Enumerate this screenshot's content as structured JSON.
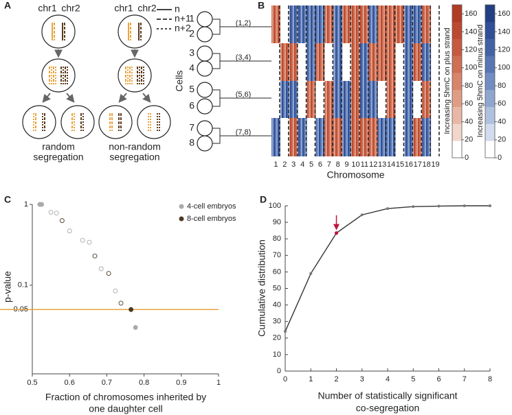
{
  "diagram": {
    "panel": "A",
    "chromosome_labels": [
      "chr1",
      "chr2"
    ],
    "legend": [
      "n",
      "n+1",
      "n+2"
    ],
    "captions": [
      [
        "random",
        "segregation"
      ],
      [
        "non-random",
        "segregation"
      ]
    ]
  },
  "chart_data": [
    {
      "type": "heatmap",
      "panel": "B",
      "xlabel": "Chromosome",
      "ylabel": "Cells",
      "categories": [
        "1",
        "2",
        "3",
        "4",
        "5",
        "6",
        "7",
        "8",
        "9",
        "10",
        "11",
        "12",
        "13",
        "14",
        "15",
        "16",
        "17",
        "18",
        "19"
      ],
      "cells": [
        "1",
        "2",
        "3",
        "4",
        "5",
        "6",
        "7",
        "8"
      ],
      "pairs": [
        "(1,2)",
        "(3,4)",
        "(5,6)",
        "(7,8)"
      ],
      "strand_by_pair": [
        [
          "plus",
          null,
          "minus",
          "minus",
          "minus",
          "minus",
          "plus",
          "minus",
          "plus",
          "plus",
          "plus",
          "minus",
          "plus",
          "plus",
          "plus",
          "minus",
          "minus",
          "plus",
          null
        ],
        [
          null,
          "plus",
          "plus",
          null,
          "minus",
          "plus",
          null,
          "minus",
          null,
          "plus",
          "minus",
          "plus",
          "plus",
          "plus",
          null,
          "minus",
          "plus",
          "minus",
          null
        ],
        [
          null,
          "minus",
          "minus",
          null,
          "plus",
          null,
          "plus",
          "minus",
          "minus",
          "plus",
          "minus",
          "minus",
          null,
          "plus",
          null,
          "minus",
          null,
          "plus",
          null
        ],
        [
          "minus",
          null,
          "plus",
          "minus",
          null,
          "minus",
          "plus",
          "plus",
          "minus",
          "plus",
          "plus",
          "plus",
          "minus",
          "minus",
          null,
          "minus",
          "plus",
          "minus",
          null
        ]
      ],
      "colorbars": [
        {
          "strand": "plus",
          "label": "Increasing 5hmC on plus strand",
          "ylim": [
            0,
            170
          ],
          "yticks": [
            0,
            20,
            40,
            60,
            80,
            100,
            120,
            140,
            160
          ],
          "colors": [
            "#ffffff",
            "#f2d6cc",
            "#e9b7a5",
            "#e09d86",
            "#d7856b",
            "#cf6f54",
            "#c65a40",
            "#bc4a31",
            "#b03c26"
          ]
        },
        {
          "strand": "minus",
          "label": "Increasing 5hmC on minus strand",
          "ylim": [
            0,
            170
          ],
          "yticks": [
            0,
            20,
            40,
            60,
            80,
            100,
            120,
            140,
            160
          ],
          "colors": [
            "#ffffff",
            "#d3dcee",
            "#b0c1e0",
            "#8fa6d1",
            "#718dc2",
            "#5876b4",
            "#4262a6",
            "#2f5096",
            "#233f84"
          ]
        }
      ]
    },
    {
      "type": "scatter",
      "panel": "C",
      "ylabel": "p-value",
      "xlabel": [
        "Fraction of chromosomes inherited by",
        "one daughter cell"
      ],
      "xlim": [
        0.5,
        1
      ],
      "xticks": [
        0.5,
        0.6,
        0.7,
        0.8,
        0.9,
        1
      ],
      "ylim": [
        0.008,
        1
      ],
      "log_y": true,
      "yticks": [
        1,
        0.1,
        0.05
      ],
      "hline": {
        "value": 0.05,
        "color": "#e8a33d"
      },
      "series": [
        {
          "name": "4-cell embryos",
          "color": "#aaaaaa",
          "x": [
            0.52,
            0.525,
            0.55,
            0.565,
            0.6,
            0.635,
            0.653,
            0.685,
            0.723,
            0.777
          ],
          "values": [
            1,
            1,
            0.8,
            0.78,
            0.47,
            0.36,
            0.34,
            0.16,
            0.085,
            0.03
          ],
          "filled": [
            true,
            true,
            false,
            false,
            false,
            false,
            false,
            false,
            false,
            true
          ]
        },
        {
          "name": "8-cell embryos",
          "color": "#4a3a22",
          "x": [
            0.58,
            0.668,
            0.705,
            0.738,
            0.765
          ],
          "values": [
            0.63,
            0.23,
            0.14,
            0.06,
            0.05
          ],
          "filled": [
            false,
            false,
            false,
            false,
            true
          ]
        }
      ]
    },
    {
      "type": "line",
      "panel": "D",
      "ylabel": "Cumulative distribution",
      "xlabel": [
        "Number of statistically significant",
        "co-segregation"
      ],
      "x": [
        0,
        1,
        2,
        3,
        4,
        5,
        6,
        7,
        8
      ],
      "values": [
        24,
        59,
        83.5,
        94.5,
        98.3,
        99.5,
        99.8,
        100,
        100
      ],
      "color": "#333333",
      "highlight_index": 2,
      "highlight_color": "#c0143c",
      "xlim": [
        0,
        8
      ],
      "xticks": [
        0,
        1,
        2,
        3,
        4,
        5,
        6,
        7,
        8
      ],
      "ylim": [
        0,
        100
      ],
      "yticks": [
        0,
        10,
        20,
        30,
        40,
        50,
        60,
        70,
        80,
        90,
        100
      ]
    }
  ]
}
